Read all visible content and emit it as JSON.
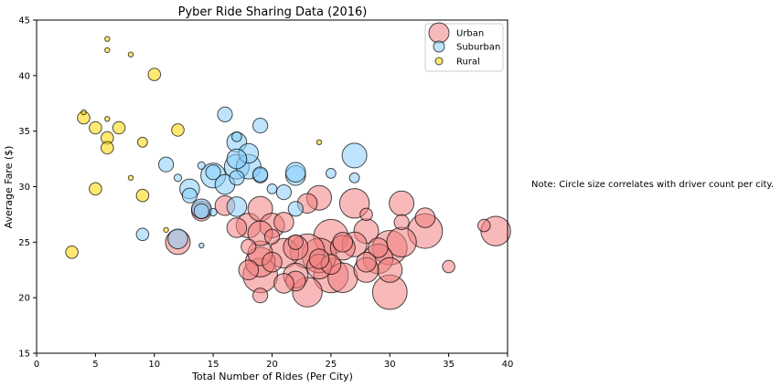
{
  "chart_data": {
    "type": "scatter",
    "title": "Pyber Ride Sharing Data (2016)",
    "xlabel": "Total Number of Rides (Per City)",
    "ylabel": "Average Fare ($)",
    "xlim": [
      0,
      40
    ],
    "ylim": [
      15,
      45
    ],
    "xticks": [
      "0",
      "5",
      "10",
      "15",
      "20",
      "25",
      "30",
      "35",
      "40"
    ],
    "yticks": [
      "15",
      "20",
      "25",
      "30",
      "35",
      "40",
      "45"
    ],
    "grid": false,
    "legend_position": "top-right",
    "note": "Note: Circle size correlates with driver count per city.",
    "series": [
      {
        "name": "Urban",
        "color": "#f08080",
        "points": [
          [
            18,
            26.5,
            10
          ],
          [
            19,
            28,
            10
          ],
          [
            20,
            26.5,
            10
          ],
          [
            21,
            26.8,
            8
          ],
          [
            22,
            24.5,
            10
          ],
          [
            23,
            28.5,
            8
          ],
          [
            24,
            29,
            10
          ],
          [
            25,
            25.5,
            14
          ],
          [
            26,
            25,
            8
          ],
          [
            27,
            28.5,
            12
          ],
          [
            28,
            26,
            10
          ],
          [
            29,
            24.5,
            8
          ],
          [
            30,
            24.5,
            14
          ],
          [
            31,
            25,
            12
          ],
          [
            31,
            28.5,
            10
          ],
          [
            33,
            26,
            14
          ],
          [
            33,
            27.2,
            8
          ],
          [
            39,
            26,
            12
          ],
          [
            38,
            26.5,
            5
          ],
          [
            35,
            22.8,
            5
          ],
          [
            30,
            20.5,
            14
          ],
          [
            30,
            22.5,
            10
          ],
          [
            29,
            23.5,
            12
          ],
          [
            28,
            22.5,
            10
          ],
          [
            28,
            23.2,
            8
          ],
          [
            27,
            24.8,
            10
          ],
          [
            26,
            21.8,
            12
          ],
          [
            25,
            22,
            14
          ],
          [
            25,
            23,
            8
          ],
          [
            24,
            22.8,
            10
          ],
          [
            24,
            23.8,
            14
          ],
          [
            23,
            24.2,
            14
          ],
          [
            23,
            20.5,
            12
          ],
          [
            22,
            22,
            10
          ],
          [
            22,
            21.5,
            8
          ],
          [
            21,
            24,
            12
          ],
          [
            21,
            21.3,
            8
          ],
          [
            20,
            23.2,
            8
          ],
          [
            19,
            22,
            14
          ],
          [
            19,
            23.2,
            12
          ],
          [
            19,
            24,
            10
          ],
          [
            19,
            25.8,
            10
          ],
          [
            19,
            20.2,
            6
          ],
          [
            18,
            22.5,
            8
          ],
          [
            18,
            24.6,
            6
          ],
          [
            17,
            26.3,
            8
          ],
          [
            16,
            28.3,
            8
          ],
          [
            14,
            27.8,
            8
          ],
          [
            12,
            25,
            10
          ],
          [
            22,
            25,
            6
          ],
          [
            26,
            24.5,
            10
          ],
          [
            28,
            27.5,
            5
          ],
          [
            31,
            26.8,
            6
          ],
          [
            24,
            23.5,
            8
          ],
          [
            20,
            25.5,
            6
          ]
        ]
      },
      {
        "name": "Suburban",
        "color": "#87cefa",
        "points": [
          [
            16,
            36.5,
            6
          ],
          [
            19,
            35.5,
            6
          ],
          [
            17,
            34.5,
            4
          ],
          [
            17,
            34,
            8
          ],
          [
            18,
            33,
            8
          ],
          [
            27,
            32.8,
            10
          ],
          [
            17,
            32.5,
            8
          ],
          [
            17,
            31.8,
            10
          ],
          [
            18,
            31.8,
            10
          ],
          [
            19,
            31,
            6
          ],
          [
            22,
            31,
            8
          ],
          [
            22,
            31.3,
            8
          ],
          [
            25,
            31.2,
            4
          ],
          [
            27,
            30.8,
            4
          ],
          [
            15,
            31,
            10
          ],
          [
            15,
            31.3,
            6
          ],
          [
            17,
            30.8,
            6
          ],
          [
            16,
            30.2,
            8
          ],
          [
            13,
            29.8,
            8
          ],
          [
            13,
            29.2,
            6
          ],
          [
            11,
            32,
            6
          ],
          [
            12,
            30.8,
            3
          ],
          [
            21,
            29.5,
            6
          ],
          [
            20,
            29.8,
            4
          ],
          [
            17,
            28.2,
            8
          ],
          [
            14,
            28,
            8
          ],
          [
            14,
            27.8,
            6
          ],
          [
            15,
            27.7,
            3
          ],
          [
            22,
            28,
            6
          ],
          [
            12,
            25.3,
            8
          ],
          [
            9,
            25.7,
            5
          ],
          [
            14,
            31.9,
            3
          ],
          [
            14,
            24.7,
            2
          ],
          [
            19,
            31.1,
            6
          ]
        ]
      },
      {
        "name": "Rural",
        "color": "#ffd700",
        "points": [
          [
            6,
            43.3,
            2
          ],
          [
            6,
            42.3,
            2
          ],
          [
            8,
            41.9,
            2
          ],
          [
            10,
            40.1,
            5
          ],
          [
            4,
            36.7,
            2
          ],
          [
            4,
            36.2,
            5
          ],
          [
            6,
            36.1,
            2
          ],
          [
            5,
            35.3,
            5
          ],
          [
            7,
            35.3,
            5
          ],
          [
            12,
            35.1,
            5
          ],
          [
            6,
            34.4,
            5
          ],
          [
            9,
            34,
            4
          ],
          [
            6,
            33.5,
            5
          ],
          [
            24,
            34,
            2
          ],
          [
            8,
            30.8,
            2
          ],
          [
            5,
            29.8,
            5
          ],
          [
            9,
            29.2,
            5
          ],
          [
            11,
            26.1,
            2
          ],
          [
            3,
            24.1,
            5
          ]
        ]
      }
    ]
  }
}
